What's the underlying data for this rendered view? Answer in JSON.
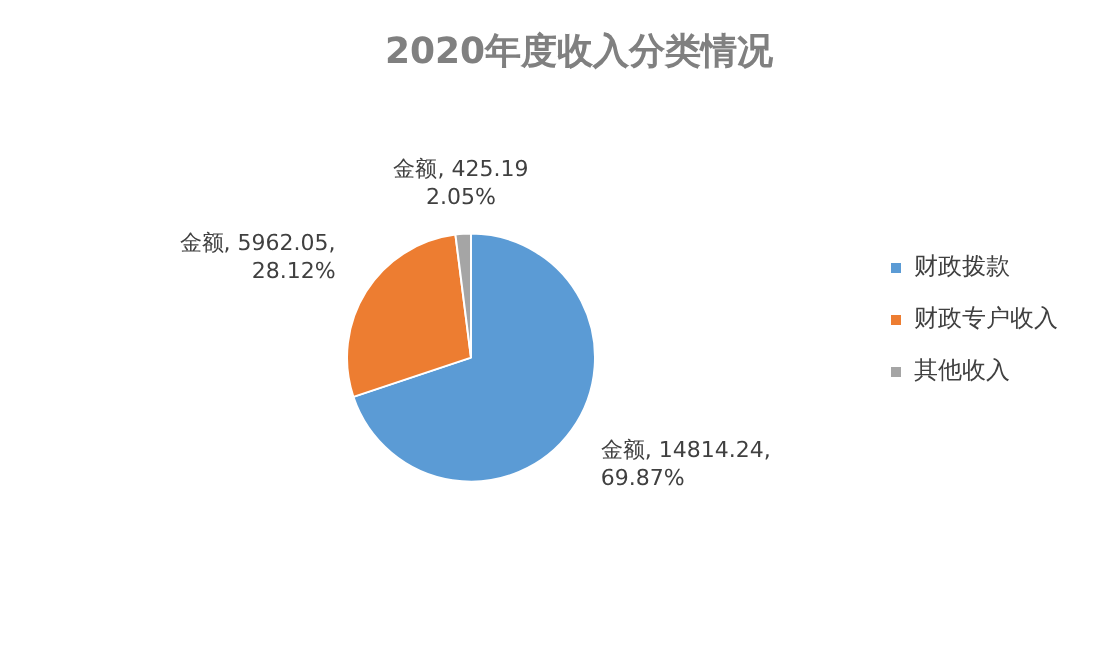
{
  "chart_data": {
    "type": "pie",
    "title": "2020年度收入分类情况",
    "categories": [
      "财政拨款",
      "财政专户收入",
      "其他收入"
    ],
    "values": [
      14814.24,
      5962.05,
      425.19
    ],
    "colors": [
      "#5b9bd5",
      "#ed7d31",
      "#a5a5a5"
    ],
    "value_labels": [
      "金额, 14814.24,\n69.87%",
      "金额, 5962.05,\n28.12%",
      "金额, 425.19\n2.05%"
    ],
    "legend": "right"
  }
}
